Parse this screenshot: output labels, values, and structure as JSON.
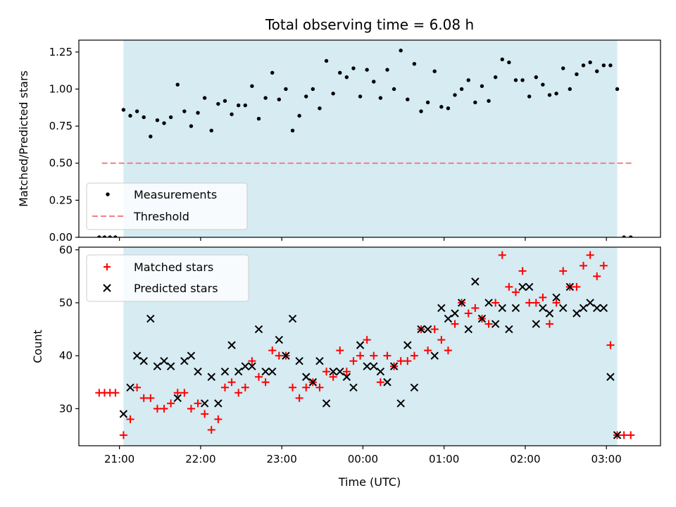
{
  "chart_data": [
    {
      "type": "scatter",
      "title": "Total observing time = 6.08 h",
      "xlabel": "",
      "ylabel": "Matched/Predicted stars",
      "xlim": [
        "20:30",
        "03:40"
      ],
      "ylim": [
        0,
        1.33
      ],
      "yticks": [
        "0.00",
        "0.25",
        "0.50",
        "0.75",
        "1.00",
        "1.25"
      ],
      "yticks_values": [
        0,
        0.25,
        0.5,
        0.75,
        1.0,
        1.25
      ],
      "observing_window": [
        "21:03",
        "03:08"
      ],
      "legend_position": "lower-left",
      "series": [
        {
          "name": "Measurements",
          "marker": "dot",
          "color": "#000000",
          "x": [
            "20:45",
            "20:49",
            "20:53",
            "20:57",
            "21:03",
            "21:08",
            "21:13",
            "21:18",
            "21:23",
            "21:28",
            "21:33",
            "21:38",
            "21:43",
            "21:48",
            "21:53",
            "21:58",
            "22:03",
            "22:08",
            "22:13",
            "22:18",
            "22:23",
            "22:28",
            "22:33",
            "22:38",
            "22:43",
            "22:48",
            "22:53",
            "22:58",
            "23:03",
            "23:08",
            "23:13",
            "23:18",
            "23:23",
            "23:28",
            "23:33",
            "23:38",
            "23:43",
            "23:48",
            "23:53",
            "23:58",
            "00:03",
            "00:08",
            "00:13",
            "00:18",
            "00:23",
            "00:28",
            "00:33",
            "00:38",
            "00:43",
            "00:48",
            "00:53",
            "00:58",
            "01:03",
            "01:08",
            "01:13",
            "01:18",
            "01:23",
            "01:28",
            "01:33",
            "01:38",
            "01:43",
            "01:48",
            "01:53",
            "01:58",
            "02:03",
            "02:08",
            "02:13",
            "02:18",
            "02:23",
            "02:28",
            "02:33",
            "02:38",
            "02:43",
            "02:48",
            "02:53",
            "02:58",
            "03:03",
            "03:08",
            "03:13",
            "03:18"
          ],
          "y": [
            0,
            0,
            0,
            0,
            0.86,
            0.82,
            0.85,
            0.81,
            0.68,
            0.79,
            0.77,
            0.81,
            1.03,
            0.85,
            0.75,
            0.84,
            0.94,
            0.72,
            0.9,
            0.92,
            0.83,
            0.89,
            0.89,
            1.02,
            0.8,
            0.94,
            1.11,
            0.93,
            1.0,
            0.72,
            0.82,
            0.95,
            1.0,
            0.87,
            1.19,
            0.97,
            1.11,
            1.08,
            1.14,
            0.95,
            1.13,
            1.05,
            0.94,
            1.13,
            1.0,
            1.26,
            0.93,
            1.17,
            0.85,
            0.91,
            1.12,
            0.88,
            0.87,
            0.96,
            1.0,
            1.06,
            0.91,
            1.02,
            0.92,
            1.08,
            1.2,
            1.18,
            1.06,
            1.06,
            0.95,
            1.08,
            1.03,
            0.96,
            0.97,
            1.14,
            1.0,
            1.1,
            1.16,
            1.18,
            1.12,
            1.16,
            1.16,
            1.0,
            0,
            0
          ]
        },
        {
          "name": "Threshold",
          "style": "dashed",
          "color": "#f08080",
          "x": [
            "20:47",
            "03:19"
          ],
          "y": [
            0.5,
            0.5
          ]
        }
      ]
    },
    {
      "type": "scatter",
      "title": "",
      "xlabel": "Time (UTC)",
      "ylabel": "Count",
      "xlim": [
        "20:30",
        "03:40"
      ],
      "ylim": [
        23,
        60.5
      ],
      "xticks": [
        "21:00",
        "22:00",
        "23:00",
        "00:00",
        "01:00",
        "02:00",
        "03:00"
      ],
      "yticks": [
        "30",
        "40",
        "50",
        "60"
      ],
      "yticks_values": [
        30,
        40,
        50,
        60
      ],
      "observing_window": [
        "21:03",
        "03:08"
      ],
      "legend_position": "upper-left",
      "series": [
        {
          "name": "Matched stars",
          "marker": "plus",
          "color": "#ff0000",
          "x": [
            "20:45",
            "20:49",
            "20:53",
            "20:57",
            "21:03",
            "21:08",
            "21:13",
            "21:18",
            "21:23",
            "21:28",
            "21:33",
            "21:38",
            "21:43",
            "21:48",
            "21:53",
            "21:58",
            "22:03",
            "22:08",
            "22:13",
            "22:18",
            "22:23",
            "22:28",
            "22:33",
            "22:38",
            "22:43",
            "22:48",
            "22:53",
            "22:58",
            "23:03",
            "23:08",
            "23:13",
            "23:18",
            "23:23",
            "23:28",
            "23:33",
            "23:38",
            "23:43",
            "23:48",
            "23:53",
            "23:58",
            "00:03",
            "00:08",
            "00:13",
            "00:18",
            "00:23",
            "00:28",
            "00:33",
            "00:38",
            "00:43",
            "00:48",
            "00:53",
            "00:58",
            "01:03",
            "01:08",
            "01:13",
            "01:18",
            "01:23",
            "01:28",
            "01:33",
            "01:38",
            "01:43",
            "01:48",
            "01:53",
            "01:58",
            "02:03",
            "02:08",
            "02:13",
            "02:18",
            "02:23",
            "02:28",
            "02:33",
            "02:38",
            "02:43",
            "02:48",
            "02:53",
            "02:58",
            "03:03",
            "03:08",
            "03:13",
            "03:18"
          ],
          "y": [
            33,
            33,
            33,
            33,
            25,
            28,
            34,
            32,
            32,
            30,
            30,
            31,
            33,
            33,
            30,
            31,
            29,
            26,
            28,
            34,
            35,
            33,
            34,
            39,
            36,
            35,
            41,
            40,
            40,
            34,
            32,
            34,
            35,
            34,
            37,
            36,
            41,
            37,
            39,
            40,
            43,
            40,
            35,
            40,
            38,
            39,
            39,
            40,
            45,
            41,
            45,
            43,
            41,
            46,
            50,
            48,
            49,
            47,
            46,
            50,
            59,
            53,
            52,
            56,
            50,
            50,
            51,
            46,
            50,
            56,
            53,
            53,
            57,
            59,
            55,
            57,
            42,
            25,
            25,
            25
          ]
        },
        {
          "name": "Predicted stars",
          "marker": "x",
          "color": "#000000",
          "x": [
            "21:03",
            "21:08",
            "21:13",
            "21:18",
            "21:23",
            "21:28",
            "21:33",
            "21:38",
            "21:43",
            "21:48",
            "21:53",
            "21:58",
            "22:03",
            "22:08",
            "22:13",
            "22:18",
            "22:23",
            "22:28",
            "22:33",
            "22:38",
            "22:43",
            "22:48",
            "22:53",
            "22:58",
            "23:03",
            "23:08",
            "23:13",
            "23:18",
            "23:23",
            "23:28",
            "23:33",
            "23:38",
            "23:43",
            "23:48",
            "23:53",
            "23:58",
            "00:03",
            "00:08",
            "00:13",
            "00:18",
            "00:23",
            "00:28",
            "00:33",
            "00:38",
            "00:43",
            "00:48",
            "00:53",
            "00:58",
            "01:03",
            "01:08",
            "01:13",
            "01:18",
            "01:23",
            "01:28",
            "01:33",
            "01:38",
            "01:43",
            "01:48",
            "01:53",
            "01:58",
            "02:03",
            "02:08",
            "02:13",
            "02:18",
            "02:23",
            "02:28",
            "02:33",
            "02:38",
            "02:43",
            "02:48",
            "02:53",
            "02:58",
            "03:03",
            "03:08"
          ],
          "y": [
            29,
            34,
            40,
            39,
            47,
            38,
            39,
            38,
            32,
            39,
            40,
            37,
            31,
            36,
            31,
            37,
            42,
            37,
            38,
            38,
            45,
            37,
            37,
            43,
            40,
            47,
            39,
            36,
            35,
            39,
            31,
            37,
            37,
            36,
            34,
            42,
            38,
            38,
            37,
            35,
            38,
            31,
            42,
            34,
            45,
            45,
            40,
            49,
            47,
            48,
            50,
            45,
            54,
            47,
            50,
            46,
            49,
            45,
            49,
            53,
            53,
            46,
            49,
            48,
            51,
            49,
            53,
            48,
            49,
            50,
            49,
            49,
            36,
            25
          ]
        }
      ]
    }
  ]
}
